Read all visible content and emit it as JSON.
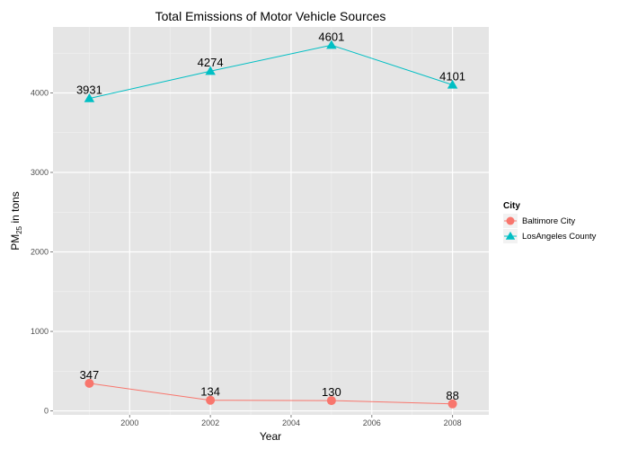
{
  "chart_data": {
    "type": "line",
    "title": "Total Emissions of Motor Vehicle Sources",
    "xlabel": "Year",
    "ylabel": {
      "main": "PM",
      "sub": "25",
      "suffix": " in tons"
    },
    "x": [
      1999,
      2002,
      2005,
      2008
    ],
    "xlim": [
      1998.1,
      2008.9
    ],
    "ylim": [
      -50,
      4830
    ],
    "xticks": [
      2000,
      2002,
      2004,
      2006,
      2008
    ],
    "yticks": [
      0,
      1000,
      2000,
      3000,
      4000
    ],
    "grid": true,
    "legend": {
      "title": "City",
      "position": "right"
    },
    "series": [
      {
        "name": "Baltimore City",
        "values": [
          347,
          134,
          130,
          88
        ],
        "color": "#F8766D",
        "marker": "circle"
      },
      {
        "name": "LosAngeles County",
        "values": [
          3931,
          4274,
          4601,
          4101
        ],
        "color": "#00BFC4",
        "marker": "triangle"
      }
    ]
  }
}
